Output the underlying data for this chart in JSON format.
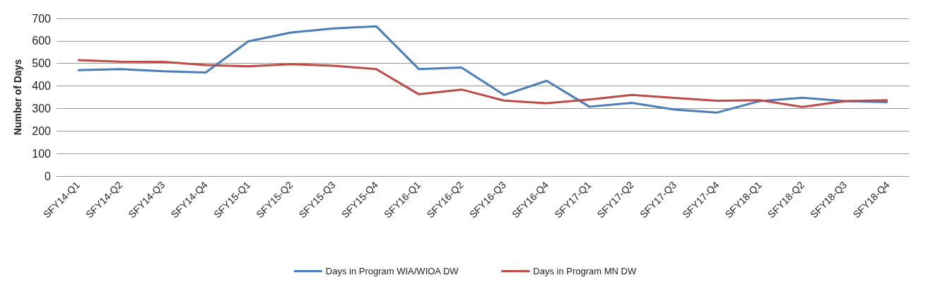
{
  "chart_data": {
    "type": "line",
    "ylabel": "Number of Days",
    "categories": [
      "SFY14-Q1",
      "SFY14-Q2",
      "SFY14-Q3",
      "SFY14-Q4",
      "SFY15-Q1",
      "SFY15-Q2",
      "SFY15-Q3",
      "SFY15-Q4",
      "SFY16-Q1",
      "SFY16-Q2",
      "SFY16-Q3",
      "SFY16-Q4",
      "SFY17-Q1",
      "SFY17-Q2",
      "SFY17-Q3",
      "SFY17-Q4",
      "SFY18-Q1",
      "SFY18-Q2",
      "SFY18-Q3",
      "SFY18-Q4"
    ],
    "series": [
      {
        "name": "Days in Program WIA/WIOA DW",
        "color": "#4a7ebb",
        "values": [
          470,
          475,
          465,
          460,
          598,
          637,
          655,
          665,
          475,
          482,
          360,
          423,
          308,
          325,
          295,
          282,
          333,
          348,
          333,
          328
        ]
      },
      {
        "name": "Days in Program MN DW",
        "color": "#be4b48",
        "values": [
          515,
          508,
          507,
          493,
          487,
          497,
          490,
          475,
          363,
          384,
          335,
          323,
          340,
          360,
          347,
          334,
          337,
          307,
          333,
          337
        ]
      }
    ],
    "ylim": [
      0,
      700
    ],
    "yticks": [
      0,
      100,
      200,
      300,
      400,
      500,
      600,
      700
    ],
    "grid": "y",
    "legend": "bottom",
    "marker": "none",
    "line_style": "solid"
  }
}
